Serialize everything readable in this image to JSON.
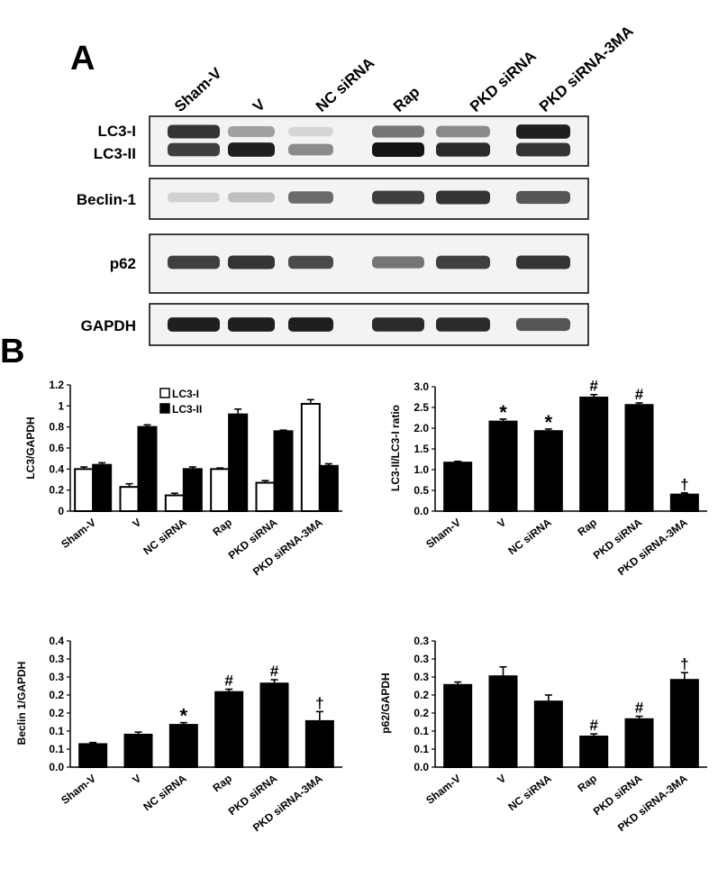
{
  "panel_labels": {
    "a": "A",
    "b": "B"
  },
  "blot": {
    "lanes": [
      "Sham-V",
      "V",
      "NC siRNA",
      "Rap",
      "PKD siRNA",
      "PKD siRNA-3MA"
    ],
    "rows": [
      {
        "labels": [
          "LC3-I",
          "LC3-II"
        ],
        "bands": [
          {
            "intensities": [
              0.85,
              0.35,
              0.1,
              0.55,
              0.45,
              0.95
            ]
          },
          {
            "intensities": [
              0.8,
              0.95,
              0.45,
              1.0,
              0.9,
              0.85
            ]
          }
        ]
      },
      {
        "labels": [
          "Beclin-1"
        ],
        "bands": [
          {
            "intensities": [
              0.12,
              0.2,
              0.6,
              0.8,
              0.85,
              0.7
            ]
          }
        ]
      },
      {
        "labels": [
          "p62"
        ],
        "bands": [
          {
            "intensities": [
              0.8,
              0.85,
              0.75,
              0.55,
              0.8,
              0.85
            ]
          }
        ]
      },
      {
        "labels": [
          "GAPDH"
        ],
        "bands": [
          {
            "intensities": [
              0.95,
              0.95,
              0.95,
              0.9,
              0.9,
              0.7
            ]
          }
        ]
      }
    ]
  },
  "chart_data": [
    {
      "type": "bar",
      "ylabel": "LC3/GAPDH",
      "ylim": [
        0,
        1.2
      ],
      "yticks": [
        "0",
        "0.2",
        "0.4",
        "0.6",
        "0.8",
        "1",
        "1.2"
      ],
      "categories": [
        "Sham-V",
        "V",
        "NC siRNA",
        "Rap",
        "PKD siRNA",
        "PKD siRNA-3MA"
      ],
      "series": [
        {
          "name": "LC3-I",
          "fill": "#ffffff",
          "values": [
            0.4,
            0.23,
            0.15,
            0.4,
            0.27,
            1.02
          ],
          "errors": [
            0.02,
            0.03,
            0.02,
            0.01,
            0.02,
            0.04
          ]
        },
        {
          "name": "LC3-II",
          "fill": "#000000",
          "values": [
            0.44,
            0.8,
            0.4,
            0.92,
            0.76,
            0.43
          ],
          "errors": [
            0.02,
            0.02,
            0.02,
            0.05,
            0.01,
            0.02
          ]
        }
      ],
      "annotations": [
        "",
        "",
        "",
        "",
        "",
        ""
      ],
      "legend_position": "top-center"
    },
    {
      "type": "bar",
      "ylabel": "LC3-II/LC3-I ratio",
      "ylim": [
        0,
        3.0
      ],
      "yticks": [
        "0.0",
        "0.5",
        "1.0",
        "1.5",
        "2.0",
        "2.5",
        "3.0"
      ],
      "categories": [
        "Sham-V",
        "V",
        "NC siRNA",
        "Rap",
        "PKD siRNA",
        "PKD siRNA-3MA"
      ],
      "series": [
        {
          "fill": "#000000",
          "values": [
            1.17,
            2.16,
            1.93,
            2.74,
            2.56,
            0.4
          ],
          "errors": [
            0.03,
            0.06,
            0.05,
            0.07,
            0.05,
            0.04
          ]
        }
      ],
      "annotations": [
        "",
        "*",
        "*",
        "#",
        "#",
        "†"
      ]
    },
    {
      "type": "bar",
      "ylabel": "Beclin 1/GAPDH",
      "ylim": [
        0,
        0.4
      ],
      "yticks": [
        "0.0",
        "0.1",
        "0.1",
        "0.2",
        "0.2",
        "0.3",
        "0.3",
        "0.4"
      ],
      "categories": [
        "Sham-V",
        "V",
        "NC siRNA",
        "Rap",
        "PKD siRNA",
        "PKD siRNA-3MA"
      ],
      "series": [
        {
          "fill": "#000000",
          "values": [
            0.073,
            0.103,
            0.134,
            0.238,
            0.265,
            0.146
          ],
          "errors": [
            0.005,
            0.008,
            0.007,
            0.009,
            0.012,
            0.03
          ]
        }
      ],
      "annotations": [
        "",
        "",
        "*",
        "#",
        "#",
        "†"
      ]
    },
    {
      "type": "bar",
      "ylabel": "p62/GAPDH",
      "ylim": [
        0,
        0.35
      ],
      "yticks": [
        "0.0",
        "0.1",
        "0.1",
        "0.2",
        "0.2",
        "0.3",
        "0.3",
        "0.3"
      ],
      "categories": [
        "Sham-V",
        "V",
        "NC siRNA",
        "Rap",
        "PKD siRNA",
        "PKD siRNA-3MA"
      ],
      "series": [
        {
          "fill": "#000000",
          "values": [
            0.228,
            0.252,
            0.182,
            0.085,
            0.133,
            0.242
          ],
          "errors": [
            0.008,
            0.026,
            0.018,
            0.007,
            0.008,
            0.02
          ]
        }
      ],
      "annotations": [
        "",
        "",
        "",
        "#",
        "#",
        "†"
      ]
    }
  ]
}
